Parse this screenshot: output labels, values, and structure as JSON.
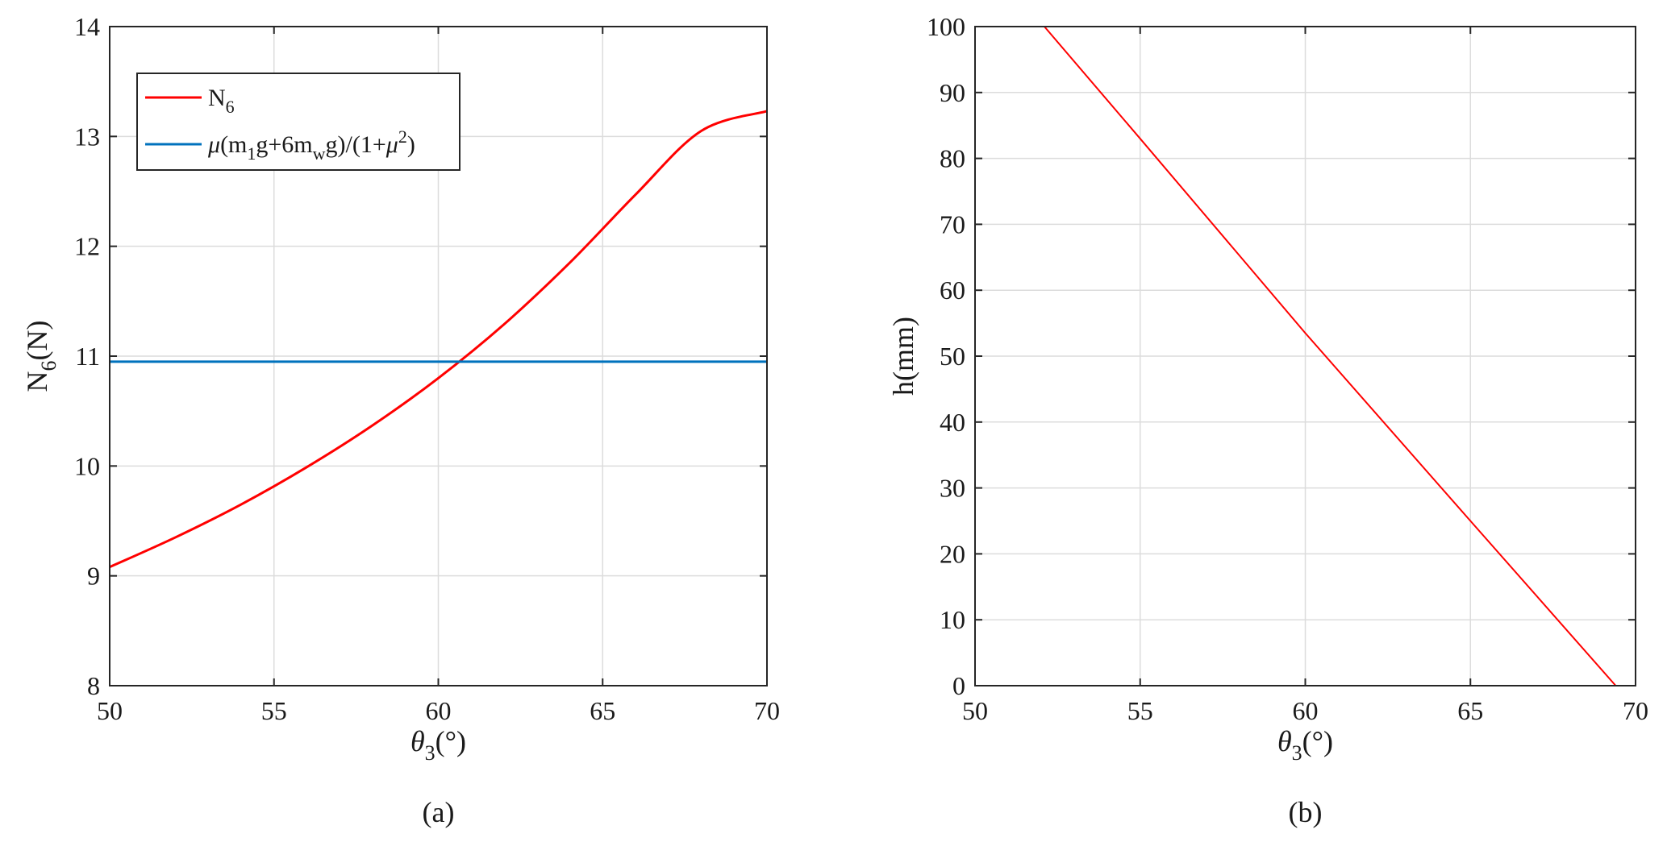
{
  "chart_data": [
    {
      "type": "line",
      "panel_label": "(a)",
      "xlabel": {
        "main": "θ",
        "sub": "3",
        "tail": "(°)"
      },
      "ylabel": {
        "main": "N",
        "sub": "6",
        "tail": "(N)"
      },
      "xlim": [
        50,
        70
      ],
      "ylim": [
        8,
        14
      ],
      "xticks": [
        50,
        55,
        60,
        65,
        70
      ],
      "yticks": [
        8,
        9,
        10,
        11,
        12,
        13,
        14
      ],
      "grid": true,
      "legend_position": "top-left",
      "series": [
        {
          "legend": {
            "main": "N",
            "sub": "6"
          },
          "color": "#ff0000",
          "x": [
            50,
            52,
            54,
            56,
            58,
            60,
            62,
            64,
            66,
            68,
            70
          ],
          "y": [
            9.08,
            9.35,
            9.65,
            9.99,
            10.37,
            10.8,
            11.29,
            11.85,
            12.47,
            13.05,
            13.23
          ]
        },
        {
          "legend": {
            "text": [
              {
                "t": "μ",
                "style": "italic"
              },
              {
                "t": "(m"
              },
              {
                "t": "1",
                "style": "sub"
              },
              {
                "t": "g+6m"
              },
              {
                "t": "w",
                "style": "sub"
              },
              {
                "t": "g)/(1+"
              },
              {
                "t": "μ",
                "style": "italic"
              },
              {
                "t": "2",
                "style": "sup"
              },
              {
                "t": ")"
              }
            ]
          },
          "color": "#0072bd",
          "x": [
            50,
            70
          ],
          "y": [
            10.95,
            10.95
          ]
        }
      ]
    },
    {
      "type": "line",
      "panel_label": "(b)",
      "xlabel": {
        "main": "θ",
        "sub": "3",
        "tail": "(°)"
      },
      "ylabel": {
        "main": "h(mm)"
      },
      "xlim": [
        50,
        70
      ],
      "ylim": [
        0,
        100
      ],
      "xticks": [
        50,
        55,
        60,
        65,
        70
      ],
      "yticks": [
        0,
        10,
        20,
        30,
        40,
        50,
        60,
        70,
        80,
        90,
        100
      ],
      "grid": true,
      "series": [
        {
          "color": "#ff0000",
          "x": [
            52.1,
            55,
            60,
            65,
            69.4
          ],
          "y": [
            100,
            83,
            53.5,
            25,
            0
          ]
        }
      ]
    }
  ]
}
